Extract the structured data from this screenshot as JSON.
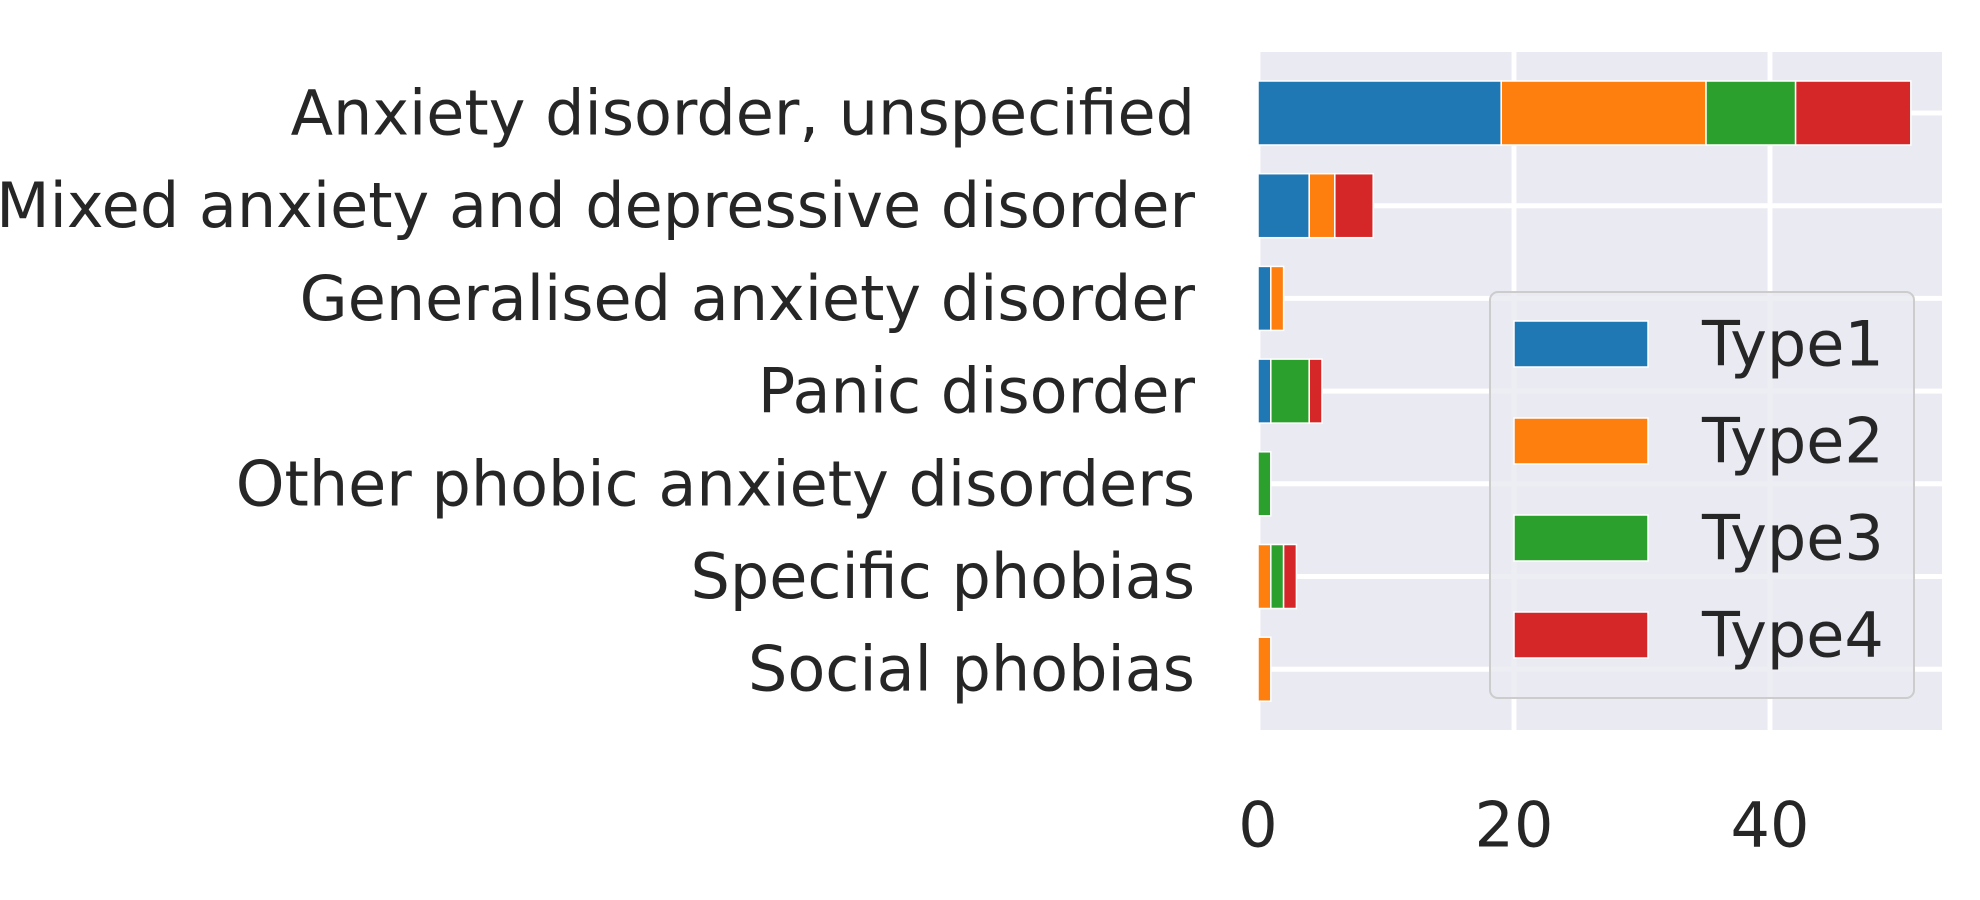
{
  "chart_data": {
    "type": "bar",
    "orientation": "horizontal",
    "stacked": true,
    "categories": [
      "Anxiety disorder, unspecified",
      "Mixed anxiety and depressive disorder",
      "Generalised anxiety disorder",
      "Panic disorder",
      "Other phobic anxiety disorders",
      "Specific phobias",
      "Social phobias"
    ],
    "series": [
      {
        "name": "Type1",
        "color": "#1f77b4",
        "values": [
          19,
          4,
          1,
          1,
          0,
          0,
          0
        ]
      },
      {
        "name": "Type2",
        "color": "#ff7f0e",
        "values": [
          16,
          2,
          1,
          0,
          0,
          1,
          1
        ]
      },
      {
        "name": "Type3",
        "color": "#2ca02c",
        "values": [
          7,
          0,
          0,
          3,
          1,
          1,
          0
        ]
      },
      {
        "name": "Type4",
        "color": "#d62728",
        "values": [
          9,
          3,
          0,
          1,
          0,
          1,
          0
        ]
      }
    ],
    "xticks": [
      0,
      20,
      40
    ],
    "xlim": [
      0,
      53.5
    ],
    "grid": true,
    "legend_position": "lower-right",
    "title": "",
    "xlabel": "",
    "ylabel": ""
  }
}
